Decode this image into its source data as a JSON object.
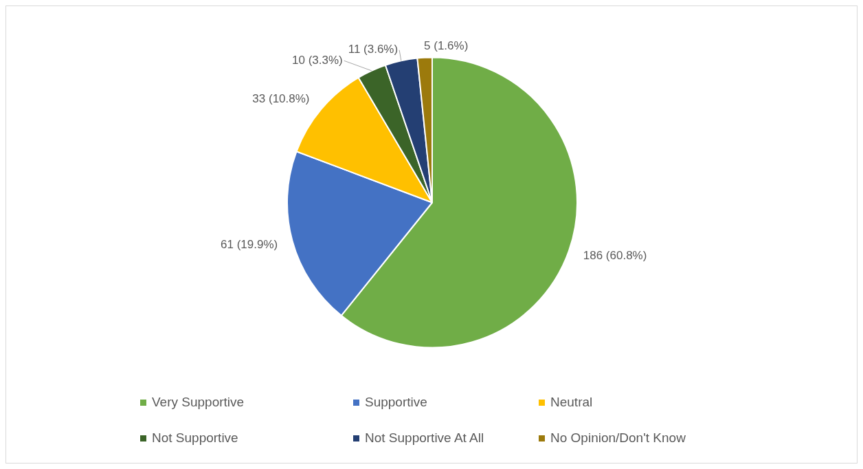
{
  "chart_data": {
    "type": "pie",
    "categories": [
      "Very Supportive",
      "Supportive",
      "Neutral",
      "Not Supportive",
      "Not Supportive At All",
      "No Opinion/Don't Know"
    ],
    "values": [
      186,
      61,
      33,
      10,
      11,
      5
    ],
    "colors": [
      "#70ad47",
      "#4472c4",
      "#ffc000",
      "#3b6428",
      "#243f73",
      "#9c7a0c"
    ],
    "value_labels": [
      "186 (60.8%)",
      "61 (19.9%)",
      "33 (10.8%)",
      "10 (3.3%)",
      "11 (3.6%)",
      "5 (1.6%)"
    ],
    "legend": "bottom"
  }
}
